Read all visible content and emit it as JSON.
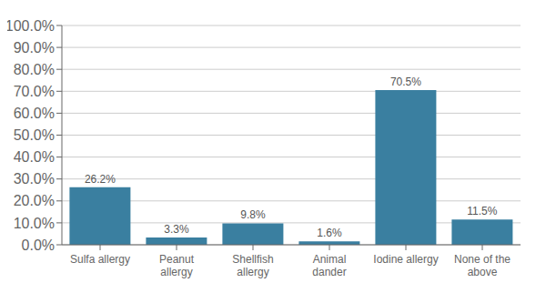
{
  "chart_data": {
    "type": "bar",
    "categories": [
      "Sulfa allergy",
      "Peanut\nallergy",
      "Shellfish\nallergy",
      "Animal\ndander",
      "Iodine allergy",
      "None of the\nabove"
    ],
    "values": [
      26.2,
      3.3,
      9.8,
      1.6,
      70.5,
      11.5
    ],
    "value_labels": [
      "26.2%",
      "3.3%",
      "9.8%",
      "1.6%",
      "70.5%",
      "11.5%"
    ],
    "color": "#3a7fa0",
    "ylim": [
      0,
      100
    ],
    "yticks": [
      {
        "value": 0,
        "label": "0.0%"
      },
      {
        "value": 10,
        "label": "10.0%"
      },
      {
        "value": 20,
        "label": "20.0%"
      },
      {
        "value": 30,
        "label": "30.0%"
      },
      {
        "value": 40,
        "label": "40.0%"
      },
      {
        "value": 50,
        "label": "50.0%"
      },
      {
        "value": 60,
        "label": "60.0%"
      },
      {
        "value": 70,
        "label": "70.0%"
      },
      {
        "value": 80,
        "label": "80.0%"
      },
      {
        "value": 90,
        "label": "90.0%"
      },
      {
        "value": 100,
        "label": "100.0%"
      }
    ],
    "grid": true,
    "data_labels": true
  }
}
